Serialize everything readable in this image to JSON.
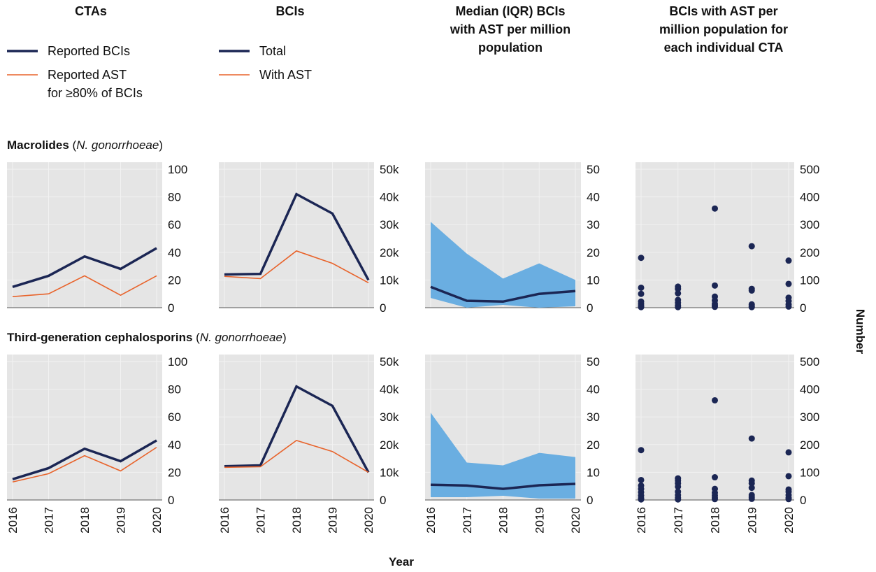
{
  "colors": {
    "navy": "#1b2654",
    "orange": "#e8632b",
    "iqr_fill": "#6aaee1",
    "panel_bg": "#e5e5e5",
    "grid": "#f2f2f2"
  },
  "columns": [
    {
      "title_lines": [
        "CTAs"
      ]
    },
    {
      "title_lines": [
        "BCIs"
      ]
    },
    {
      "title_lines": [
        "Median (IQR) BCIs",
        "with AST per million",
        "population"
      ]
    },
    {
      "title_lines": [
        "BCIs with AST per",
        "million population for",
        "each individual CTA"
      ]
    }
  ],
  "legends": {
    "ctas": [
      {
        "label_lines": [
          "Reported BCIs"
        ],
        "color": "#1b2654",
        "weight": "thick"
      },
      {
        "label_lines": [
          "Reported AST",
          "for ≥80% of BCIs"
        ],
        "color": "#e8632b",
        "weight": "thin"
      }
    ],
    "bcis": [
      {
        "label_lines": [
          "Total"
        ],
        "color": "#1b2654",
        "weight": "thick"
      },
      {
        "label_lines": [
          "With AST"
        ],
        "color": "#e8632b",
        "weight": "thin"
      }
    ]
  },
  "rows": [
    {
      "title_bold": "Macrolides",
      "title_rest": " (N. gonorrhoeae)"
    },
    {
      "title_bold": "Third-generation cephalosporins",
      "title_rest": " (N. gonorrhoeae)"
    }
  ],
  "axis_titles": {
    "x": "Year",
    "y": "Number"
  },
  "chart_data": [
    {
      "type": "line",
      "row": 0,
      "col": 0,
      "ylim": [
        0,
        100
      ],
      "yticks": [
        0,
        20,
        40,
        60,
        80,
        100
      ],
      "ytick_labels": [
        "0",
        "20",
        "40",
        "60",
        "80",
        "100"
      ],
      "x": [
        2016,
        2017,
        2018,
        2019,
        2020
      ],
      "series": [
        {
          "name": "Reported BCIs",
          "values": [
            15,
            23,
            37,
            28,
            43
          ]
        },
        {
          "name": "Reported AST for ≥80% of BCIs",
          "values": [
            8,
            10,
            23,
            9,
            23
          ]
        }
      ]
    },
    {
      "type": "line",
      "row": 0,
      "col": 1,
      "ylim": [
        0,
        50000
      ],
      "yticks": [
        0,
        10000,
        20000,
        30000,
        40000,
        50000
      ],
      "ytick_labels": [
        "0",
        "10k",
        "20k",
        "30k",
        "40k",
        "50k"
      ],
      "x": [
        2016,
        2017,
        2018,
        2019,
        2020
      ],
      "series": [
        {
          "name": "Total",
          "values": [
            12000,
            12200,
            41000,
            34000,
            10000
          ]
        },
        {
          "name": "With AST",
          "values": [
            11300,
            10500,
            20500,
            16000,
            9000
          ]
        }
      ]
    },
    {
      "type": "area",
      "row": 0,
      "col": 2,
      "ylim": [
        0,
        50
      ],
      "yticks": [
        0,
        10,
        20,
        30,
        40,
        50
      ],
      "ytick_labels": [
        "0",
        "10",
        "20",
        "30",
        "40",
        "50"
      ],
      "x": [
        2016,
        2017,
        2018,
        2019,
        2020
      ],
      "median": [
        7.5,
        2.5,
        2.2,
        5,
        6
      ],
      "q1": [
        3.5,
        0,
        1,
        0,
        0.5
      ],
      "q3": [
        31,
        19.5,
        10.5,
        16,
        10
      ]
    },
    {
      "type": "scatter",
      "row": 0,
      "col": 3,
      "ylim": [
        0,
        500
      ],
      "yticks": [
        0,
        100,
        200,
        300,
        400,
        500
      ],
      "ytick_labels": [
        "0",
        "100",
        "200",
        "300",
        "400",
        "500"
      ],
      "points": {
        "2016": [
          180,
          72,
          50,
          22,
          14,
          6,
          2
        ],
        "2017": [
          76,
          68,
          52,
          28,
          18,
          8,
          2
        ],
        "2018": [
          358,
          80,
          40,
          26,
          14,
          8,
          3
        ],
        "2019": [
          222,
          68,
          62,
          12,
          6,
          2
        ],
        "2020": [
          170,
          86,
          36,
          24,
          12,
          4
        ]
      }
    },
    {
      "type": "line",
      "row": 1,
      "col": 0,
      "ylim": [
        0,
        100
      ],
      "yticks": [
        0,
        20,
        40,
        60,
        80,
        100
      ],
      "ytick_labels": [
        "0",
        "20",
        "40",
        "60",
        "80",
        "100"
      ],
      "x": [
        2016,
        2017,
        2018,
        2019,
        2020
      ],
      "series": [
        {
          "name": "Reported BCIs",
          "values": [
            15,
            23,
            37,
            28,
            43
          ]
        },
        {
          "name": "Reported AST for ≥80% of BCIs",
          "values": [
            13,
            19,
            32,
            21,
            38
          ]
        }
      ]
    },
    {
      "type": "line",
      "row": 1,
      "col": 1,
      "ylim": [
        0,
        50000
      ],
      "yticks": [
        0,
        10000,
        20000,
        30000,
        40000,
        50000
      ],
      "ytick_labels": [
        "0",
        "10k",
        "20k",
        "30k",
        "40k",
        "50k"
      ],
      "x": [
        2016,
        2017,
        2018,
        2019,
        2020
      ],
      "series": [
        {
          "name": "Total",
          "values": [
            12200,
            12500,
            41000,
            34000,
            10000
          ]
        },
        {
          "name": "With AST",
          "values": [
            11800,
            12000,
            21500,
            17500,
            10000
          ]
        }
      ]
    },
    {
      "type": "area",
      "row": 1,
      "col": 2,
      "ylim": [
        0,
        50
      ],
      "yticks": [
        0,
        10,
        20,
        30,
        40,
        50
      ],
      "ytick_labels": [
        "0",
        "10",
        "20",
        "30",
        "40",
        "50"
      ],
      "x": [
        2016,
        2017,
        2018,
        2019,
        2020
      ],
      "median": [
        5.5,
        5.2,
        4,
        5.3,
        5.8
      ],
      "q1": [
        1,
        1,
        1.5,
        0.5,
        0.5
      ],
      "q3": [
        31.5,
        13.5,
        12.5,
        17,
        15.5
      ]
    },
    {
      "type": "scatter",
      "row": 1,
      "col": 3,
      "ylim": [
        0,
        500
      ],
      "yticks": [
        0,
        100,
        200,
        300,
        400,
        500
      ],
      "ytick_labels": [
        "0",
        "100",
        "200",
        "300",
        "400",
        "500"
      ],
      "points": {
        "2016": [
          180,
          72,
          52,
          40,
          28,
          16,
          6,
          2
        ],
        "2017": [
          78,
          70,
          60,
          48,
          30,
          18,
          8,
          2
        ],
        "2018": [
          360,
          82,
          40,
          26,
          16,
          8,
          3
        ],
        "2019": [
          222,
          70,
          60,
          44,
          18,
          10,
          4
        ],
        "2020": [
          172,
          86,
          38,
          30,
          18,
          8,
          3
        ]
      }
    }
  ],
  "x_tick_labels": [
    "2016",
    "2017",
    "2018",
    "2019",
    "2020"
  ]
}
